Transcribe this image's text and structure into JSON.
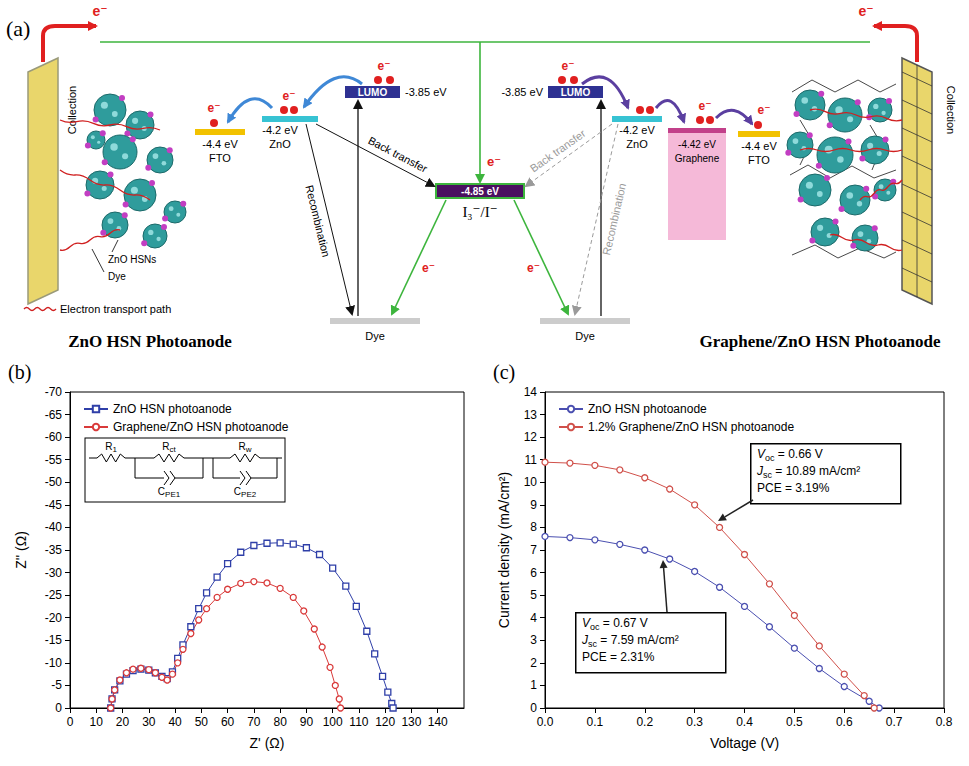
{
  "diagram": {
    "panel": "(a)",
    "electron": "e⁻",
    "collection": "Collection",
    "redox": {
      "energy": "-4.85 eV",
      "label": "I₃⁻/I⁻"
    },
    "photoanodes": [
      {
        "title": "ZnO HSN Photoanode",
        "levels": [
          {
            "energy": "-4.4 eV",
            "label": "FTO"
          },
          {
            "energy": "-4.2 eV",
            "label": "ZnO"
          },
          {
            "energy": "-3.85 eV",
            "label": "LUMO"
          }
        ],
        "dye": "Dye",
        "back_transfer": "Back transfer",
        "recombination": "Recombination",
        "callouts": [
          "ZnO HSNs",
          "Dye"
        ],
        "path_legend": "Electron transport path"
      },
      {
        "title": "Graphene/ZnO HSN Photoanode",
        "levels": [
          {
            "energy": "-3.85 eV",
            "label": "LUMO"
          },
          {
            "energy": "-4.2 eV",
            "label": "ZnO"
          },
          {
            "energy": "-4.42 eV",
            "label": "Graphene"
          },
          {
            "energy": "-4.4 eV",
            "label": "FTO"
          }
        ],
        "dye": "Dye",
        "back_transfer": "Back transfer",
        "recombination": "Recombination"
      }
    ]
  },
  "chart_data": [
    {
      "type": "line",
      "panel": "(b)",
      "x_label": "Z' (Ω)",
      "y_label": "Z'' (Ω)",
      "xlim": [
        0,
        150
      ],
      "xticks": [
        0,
        10,
        20,
        30,
        40,
        50,
        60,
        70,
        80,
        90,
        100,
        110,
        120,
        130,
        140
      ],
      "ylim": [
        0,
        -70
      ],
      "yticks": [
        0,
        -5,
        -10,
        -15,
        -20,
        -25,
        -30,
        -35,
        -40,
        -45,
        -50,
        -55,
        -60,
        -65,
        -70
      ],
      "grid": false,
      "legend": "top-left",
      "circuit": [
        "R1",
        "Rct",
        "CPE1",
        "Rw",
        "CPE2"
      ],
      "series": [
        {
          "name": "ZnO HSN photoanode",
          "color": "#2f3fa8",
          "marker": "square",
          "x": [
            15.5,
            16,
            17,
            19,
            21.5,
            24,
            27,
            30,
            32.5,
            35,
            37,
            39,
            41,
            43,
            46,
            49,
            52,
            56,
            60,
            65,
            70,
            75,
            80,
            85,
            90,
            95,
            100,
            105,
            109,
            113,
            116,
            119,
            121,
            122.5,
            123
          ],
          "values": [
            0,
            -2,
            -4,
            -6,
            -7.5,
            -8.3,
            -8.6,
            -8.4,
            -7.8,
            -7,
            -6.5,
            -8,
            -11,
            -14,
            -18,
            -22,
            -25.5,
            -29,
            -32,
            -34.5,
            -36,
            -36.5,
            -36.6,
            -36.3,
            -35.5,
            -34,
            -31,
            -27,
            -22.5,
            -17,
            -12,
            -7,
            -3.5,
            -1,
            0
          ]
        },
        {
          "name": "Graphene/ZnO HSN photoanode",
          "color": "#d93a3a",
          "marker": "circle",
          "x": [
            15.5,
            16,
            17,
            19,
            21.5,
            24,
            27,
            30,
            32.5,
            35,
            37,
            39,
            41,
            43,
            46,
            49,
            52,
            56,
            60,
            65,
            70,
            75,
            80,
            85,
            89,
            93,
            96,
            99,
            101,
            102.5,
            103
          ],
          "values": [
            0,
            -2,
            -4,
            -6.2,
            -7.8,
            -8.6,
            -8.8,
            -8.5,
            -7.8,
            -6.8,
            -6.2,
            -7.5,
            -10,
            -13,
            -16.5,
            -19.5,
            -22,
            -24.5,
            -26.3,
            -27.6,
            -28,
            -27.7,
            -26.5,
            -24.5,
            -21.5,
            -17.5,
            -13.5,
            -9,
            -5,
            -2,
            0
          ]
        }
      ]
    },
    {
      "type": "line",
      "panel": "(c)",
      "x_label": "Voltage (V)",
      "y_label": "Current density (mA/cm²)",
      "xlim": [
        0,
        0.8
      ],
      "xticks": [
        {
          "value": 0,
          "label": "0.0"
        },
        0.1,
        0.2,
        0.3,
        0.4,
        0.5,
        0.6,
        0.7,
        0.8
      ],
      "ylim": [
        0,
        14
      ],
      "yticks": [
        0,
        1,
        2,
        3,
        4,
        5,
        6,
        7,
        8,
        9,
        10,
        11,
        12,
        13,
        14
      ],
      "grid": false,
      "legend": "top-left",
      "series": [
        {
          "name": "ZnO HSN photoanode",
          "color": "#4a4fb0",
          "marker": "circle",
          "x": [
            0,
            0.05,
            0.1,
            0.15,
            0.2,
            0.25,
            0.3,
            0.35,
            0.4,
            0.45,
            0.5,
            0.55,
            0.6,
            0.65,
            0.67
          ],
          "values": [
            7.6,
            7.55,
            7.45,
            7.25,
            7.0,
            6.6,
            6.05,
            5.35,
            4.5,
            3.6,
            2.65,
            1.75,
            0.95,
            0.3,
            0
          ],
          "annotation": [
            "Voc = 0.67 V",
            "Jsc = 7.59 mA/cm²",
            "PCE = 2.31%"
          ]
        },
        {
          "name": "1.2% Graphene/ZnO HSN photoanode",
          "color": "#d0504a",
          "marker": "circle",
          "x": [
            0,
            0.05,
            0.1,
            0.15,
            0.2,
            0.25,
            0.3,
            0.35,
            0.4,
            0.45,
            0.5,
            0.55,
            0.6,
            0.64,
            0.66
          ],
          "values": [
            10.89,
            10.85,
            10.75,
            10.55,
            10.2,
            9.7,
            9.0,
            8.0,
            6.8,
            5.5,
            4.1,
            2.75,
            1.5,
            0.55,
            0
          ],
          "annotation": [
            "Voc = 0.66 V",
            "Jsc = 10.89 mA/cm²",
            "PCE = 3.19%"
          ]
        }
      ]
    }
  ]
}
